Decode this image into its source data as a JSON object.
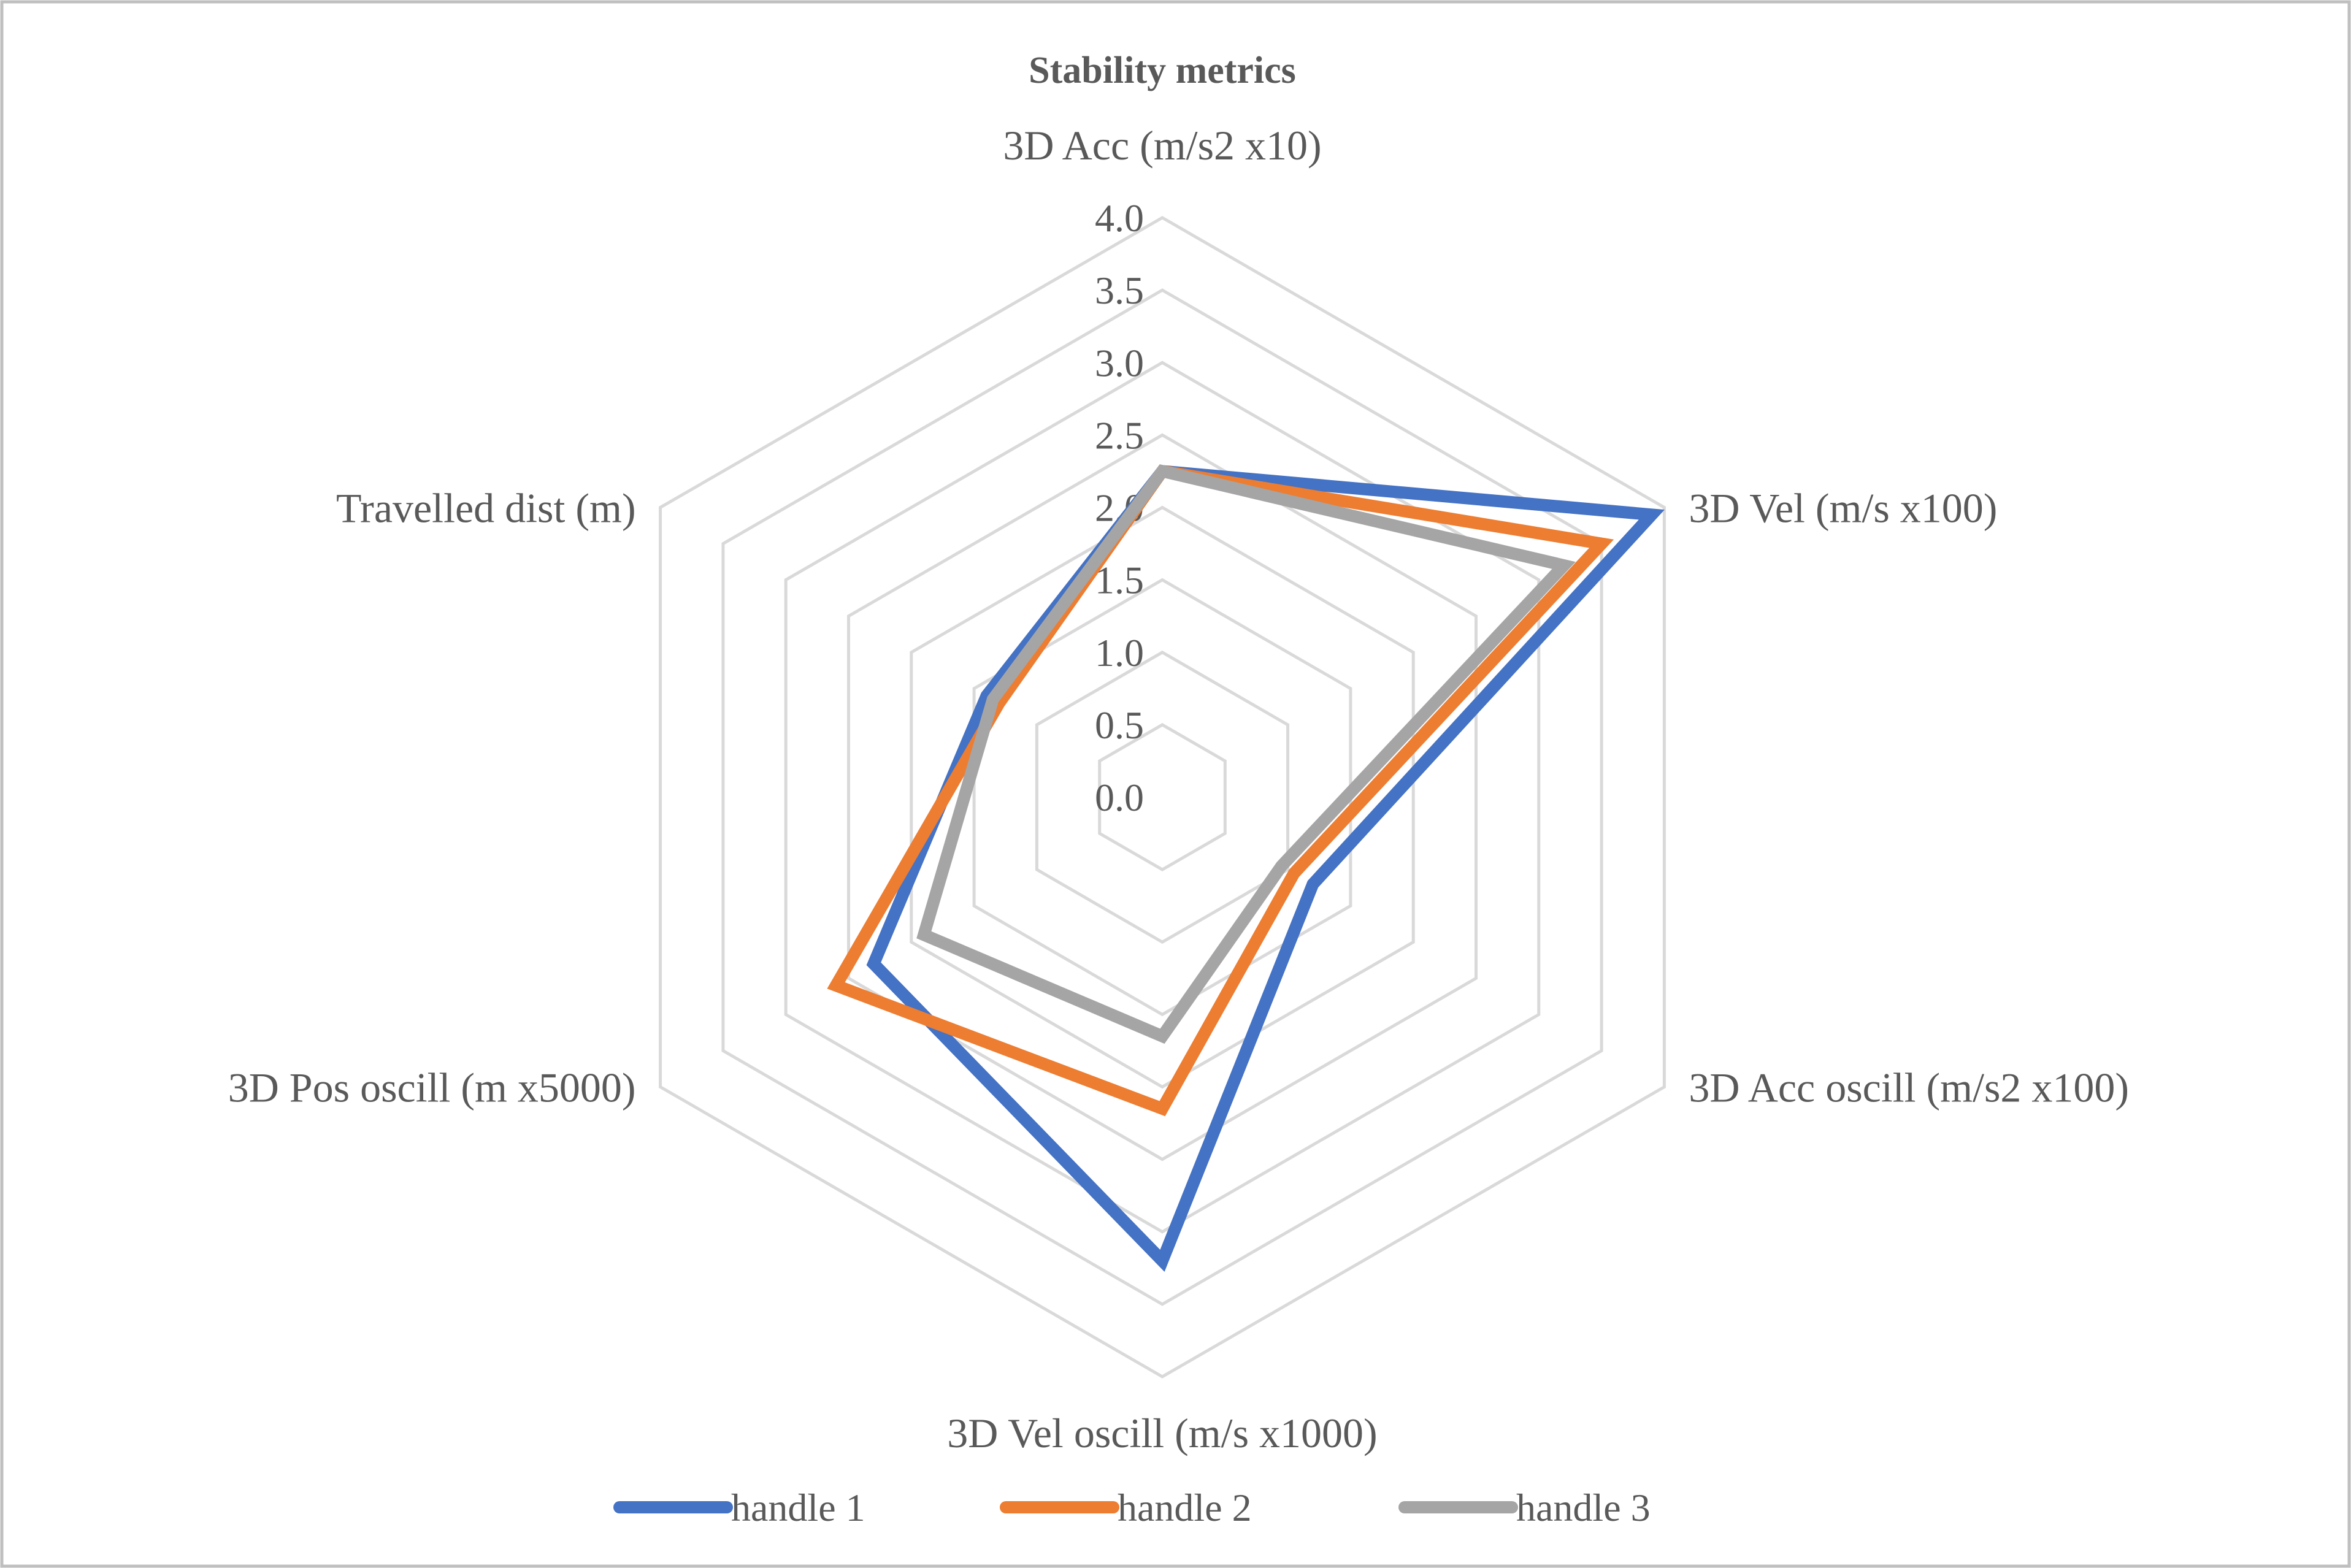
{
  "chart_data": {
    "type": "radar",
    "title": "Stability metrics",
    "axes": [
      "3D Acc (m/s2 x10)",
      "3D Vel (m/s x100)",
      "3D Acc oscill (m/s2 x100)",
      "3D Vel oscill (m/s x1000)",
      "3D Pos oscill (m x5000)",
      "Travelled dist (m)"
    ],
    "rlim": [
      0,
      4
    ],
    "ticks": [
      "0.0",
      "0.5",
      "1.0",
      "1.5",
      "2.0",
      "2.5",
      "3.0",
      "3.5",
      "4.0"
    ],
    "grid": true,
    "legend_position": "bottom",
    "series": [
      {
        "name": "handle 1",
        "color": "#4472C4",
        "values": [
          2.25,
          3.9,
          1.2,
          3.2,
          2.3,
          1.4
        ]
      },
      {
        "name": "handle 2",
        "color": "#ED7D31",
        "values": [
          2.25,
          3.5,
          1.05,
          2.15,
          2.6,
          1.3
        ]
      },
      {
        "name": "handle 3",
        "color": "#A5A5A5",
        "values": [
          2.25,
          3.2,
          0.95,
          1.65,
          1.9,
          1.35
        ]
      }
    ]
  }
}
